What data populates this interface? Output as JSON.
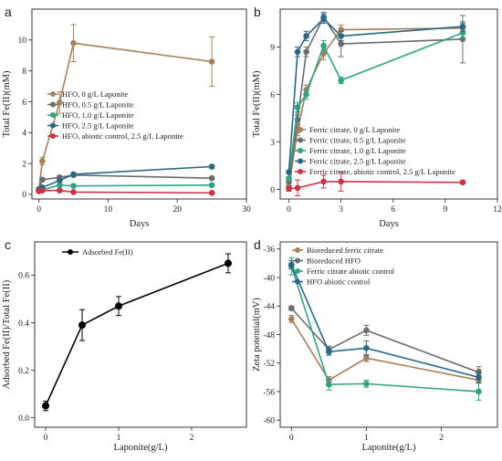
{
  "chart_data": [
    {
      "panel": "a",
      "type": "line",
      "xlabel": "Days",
      "ylabel": "Total Fe(II)(mM)",
      "xlim": [
        -1,
        30
      ],
      "ylim": [
        -0.3,
        12
      ],
      "xticks": [
        0,
        10,
        20,
        30
      ],
      "yticks": [
        0,
        2,
        4,
        6,
        8,
        10
      ],
      "legend_position": "center-right",
      "series": [
        {
          "name": "HFO, 0 g/L Laponite",
          "color": "#a6805a",
          "x": [
            0,
            0.5,
            3,
            5,
            25
          ],
          "y": [
            0.3,
            2.15,
            5.95,
            9.8,
            8.6
          ],
          "err": [
            0.1,
            0.25,
            0.7,
            1.2,
            1.6
          ]
        },
        {
          "name": "HFO, 0.5 g/L Laponite",
          "color": "#6b6b70",
          "x": [
            0,
            0.5,
            3,
            5,
            25
          ],
          "y": [
            0.35,
            0.95,
            1.1,
            1.25,
            1.05
          ],
          "err": [
            0.05,
            0.1,
            0.1,
            0.1,
            0.1
          ]
        },
        {
          "name": "HFO, 1.0 g/L Laponite",
          "color": "#2ea383",
          "x": [
            0,
            0.5,
            3,
            5,
            25
          ],
          "y": [
            0.25,
            0.3,
            0.6,
            0.55,
            0.6
          ],
          "err": [
            0.05,
            0.05,
            0.08,
            0.08,
            0.08
          ]
        },
        {
          "name": "HFO, 2.5 g/L Laponite",
          "color": "#2a6786",
          "x": [
            0,
            0.5,
            3,
            5,
            25
          ],
          "y": [
            0.3,
            0.45,
            0.9,
            1.3,
            1.8
          ],
          "err": [
            0.05,
            0.05,
            0.1,
            0.1,
            0.1
          ]
        },
        {
          "name": "HFO, abiotic control, 2.5 g/L Laponite",
          "color": "#cc3344",
          "x": [
            0,
            0.5,
            3,
            5,
            25
          ],
          "y": [
            0.2,
            0.25,
            0.25,
            0.15,
            0.1
          ],
          "err": [
            0.05,
            0.05,
            0.05,
            0.05,
            0.05
          ]
        }
      ]
    },
    {
      "panel": "b",
      "type": "line",
      "xlabel": "Days",
      "ylabel": "Total Fe(II)(mM)",
      "xlim": [
        -0.5,
        12
      ],
      "ylim": [
        -0.6,
        11.4
      ],
      "xticks": [
        0,
        3,
        6,
        9,
        12
      ],
      "yticks": [
        0,
        3,
        6,
        9
      ],
      "legend_position": "lower-right",
      "series": [
        {
          "name": "Ferric citrate, 0 g/L Laponite",
          "color": "#a6805a",
          "x": [
            0,
            0.5,
            1,
            2,
            3,
            10
          ],
          "y": [
            0.2,
            3.7,
            6.3,
            8.6,
            10.1,
            10.2
          ],
          "err": [
            0.1,
            0.3,
            0.3,
            0.4,
            0.3,
            0.3
          ]
        },
        {
          "name": "Ferric citrate, 0.5 g/L Laponite",
          "color": "#6b6b70",
          "x": [
            0,
            0.5,
            1,
            2,
            3,
            10
          ],
          "y": [
            0.5,
            4.4,
            8.7,
            10.9,
            9.2,
            9.5
          ],
          "err": [
            0.1,
            0.3,
            0.3,
            0.3,
            0.8,
            1.5
          ]
        },
        {
          "name": "Ferric citrate, 1.0 g/L Laponite",
          "color": "#2ea383",
          "x": [
            0,
            0.5,
            1,
            2,
            3,
            10
          ],
          "y": [
            0.7,
            5.2,
            6.0,
            9.1,
            6.9,
            9.9
          ],
          "err": [
            0.1,
            0.3,
            0.3,
            0.3,
            0.2,
            0.4
          ]
        },
        {
          "name": "Ferric citrate, 2.5 g/L Laponite",
          "color": "#2a6786",
          "x": [
            0,
            0.5,
            1,
            2,
            3,
            10
          ],
          "y": [
            1.1,
            8.7,
            9.7,
            10.8,
            9.7,
            10.3
          ],
          "err": [
            0.1,
            0.3,
            0.3,
            0.3,
            0.3,
            0.3
          ]
        },
        {
          "name": "Ferric citrate, abiotic control, 2.5 g/L Laponite",
          "color": "#cc3344",
          "x": [
            0,
            0.5,
            2,
            3,
            10
          ],
          "y": [
            0.05,
            0.1,
            0.5,
            0.5,
            0.45
          ],
          "err": [
            0.15,
            0.5,
            0.4,
            0.6,
            0.1
          ]
        }
      ]
    },
    {
      "panel": "c",
      "type": "line",
      "xlabel": "Laponite(g/L)",
      "ylabel": "Adsorbed Fe(II)/Total Fe(II)",
      "xlim": [
        -0.15,
        2.75
      ],
      "ylim": [
        -0.04,
        0.74
      ],
      "xticks": [
        0,
        1,
        2
      ],
      "yticks": [
        0.0,
        0.2,
        0.4,
        0.6
      ],
      "legend_position": "top-left",
      "series": [
        {
          "name": "Adsorbed Fe(II)",
          "color": "#000000",
          "x": [
            0,
            0.5,
            1,
            2.5
          ],
          "y": [
            0.05,
            0.39,
            0.47,
            0.65
          ],
          "err": [
            0.02,
            0.065,
            0.04,
            0.04
          ]
        }
      ]
    },
    {
      "panel": "d",
      "type": "line",
      "xlabel": "Laponite(g/L)",
      "ylabel": "Zeta potential(mV)",
      "xlim": [
        -0.15,
        2.75
      ],
      "ylim": [
        -61,
        -35
      ],
      "xticks": [
        0,
        1,
        2
      ],
      "yticks": [
        -36,
        -40,
        -44,
        -48,
        -52,
        -56,
        -60
      ],
      "legend_position": "top-right",
      "series": [
        {
          "name": "Bioreduced ferric citrate",
          "color": "#a6805a",
          "x": [
            0,
            0.5,
            1,
            2.5
          ],
          "y": [
            -45.8,
            -54.4,
            -51.3,
            -54.4
          ],
          "err": [
            0.5,
            0.5,
            0.5,
            1.5
          ]
        },
        {
          "name": "Bioreduced HFO",
          "color": "#6b6b70",
          "x": [
            0,
            0.5,
            1,
            2.5
          ],
          "y": [
            -44.3,
            -50.1,
            -47.4,
            -53.3
          ],
          "err": [
            0.3,
            0.5,
            0.7,
            0.8
          ]
        },
        {
          "name": "Ferric citrate abiotic control",
          "color": "#2ea383",
          "x": [
            0,
            0.5,
            1,
            2.5
          ],
          "y": [
            -38.4,
            -55.0,
            -54.9,
            -56.0
          ],
          "err": [
            1.2,
            0.8,
            0.5,
            1.2
          ]
        },
        {
          "name": "HFO abiotic control",
          "color": "#2a6786",
          "x": [
            0,
            0.5,
            1,
            2.5
          ],
          "y": [
            -38.2,
            -50.4,
            -49.9,
            -54.0
          ],
          "err": [
            0.6,
            0.5,
            1.0,
            0.8
          ]
        }
      ]
    }
  ]
}
